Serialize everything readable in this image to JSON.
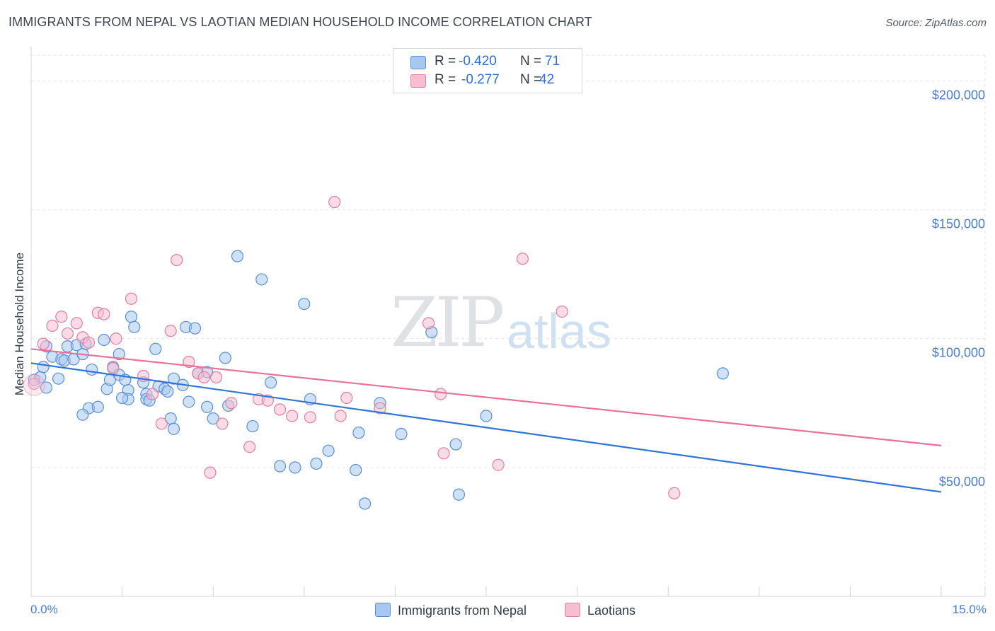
{
  "title": "IMMIGRANTS FROM NEPAL VS LAOTIAN MEDIAN HOUSEHOLD INCOME CORRELATION CHART",
  "source": "Source: ZipAtlas.com",
  "watermark": {
    "zip": "ZIP",
    "atlas": "atlas"
  },
  "stats": {
    "r_label": "R =",
    "n_label": "N =",
    "nepal": {
      "r": "-0.420",
      "n": "71"
    },
    "laotians": {
      "r": "-0.277",
      "n": "42"
    }
  },
  "legend": {
    "nepal": "Immigrants from Nepal",
    "laotians": "Laotians"
  },
  "colors": {
    "nepal_fill": "#a8c8f0",
    "nepal_stroke": "#5a8fd6",
    "nepal_line": "#2f74d6",
    "laotians_fill": "#f7bdd0",
    "laotians_stroke": "#e07fa0",
    "laotians_line": "#e8709a",
    "tick_text": "#4a7cc9",
    "grid": "#e2e5ea"
  },
  "chart_data": {
    "type": "scatter",
    "title": "IMMIGRANTS FROM NEPAL VS LAOTIAN MEDIAN HOUSEHOLD INCOME CORRELATION CHART",
    "xlabel": "",
    "ylabel": "Median Household Income",
    "xlim": [
      0,
      15
    ],
    "ylim": [
      0,
      210000
    ],
    "x_tick_labels": [
      "0.0%",
      "15.0%"
    ],
    "y_ticks": [
      {
        "value": 50000,
        "label": "$50,000"
      },
      {
        "value": 100000,
        "label": "$100,000"
      },
      {
        "value": 150000,
        "label": "$150,000"
      },
      {
        "value": 200000,
        "label": "$200,000"
      }
    ],
    "grid": true,
    "series": [
      {
        "name": "Immigrants from Nepal",
        "key": "nepal",
        "trend": {
          "x0": 0,
          "y0": 90500,
          "x1": 15,
          "y1": 40500
        },
        "points": [
          [
            0.05,
            84000
          ],
          [
            0.15,
            85000
          ],
          [
            0.2,
            89000
          ],
          [
            0.25,
            97000
          ],
          [
            0.35,
            93000
          ],
          [
            0.45,
            84500
          ],
          [
            0.5,
            92000
          ],
          [
            0.55,
            91500
          ],
          [
            0.6,
            97000
          ],
          [
            0.7,
            92000
          ],
          [
            0.75,
            97500
          ],
          [
            0.85,
            94000
          ],
          [
            0.9,
            98000
          ],
          [
            1.0,
            88000
          ],
          [
            0.95,
            73000
          ],
          [
            1.1,
            73500
          ],
          [
            0.85,
            70500
          ],
          [
            1.2,
            99500
          ],
          [
            1.25,
            80500
          ],
          [
            1.3,
            84000
          ],
          [
            1.35,
            89000
          ],
          [
            1.45,
            86000
          ],
          [
            1.45,
            94000
          ],
          [
            1.55,
            84000
          ],
          [
            1.6,
            80000
          ],
          [
            1.6,
            76500
          ],
          [
            1.65,
            108500
          ],
          [
            1.7,
            104500
          ],
          [
            1.85,
            83000
          ],
          [
            1.9,
            78500
          ],
          [
            1.9,
            76500
          ],
          [
            1.95,
            76000
          ],
          [
            2.05,
            96000
          ],
          [
            2.1,
            81500
          ],
          [
            2.2,
            80500
          ],
          [
            2.25,
            79500
          ],
          [
            2.3,
            69000
          ],
          [
            2.35,
            84500
          ],
          [
            2.35,
            65000
          ],
          [
            2.5,
            82000
          ],
          [
            2.55,
            104500
          ],
          [
            2.6,
            75500
          ],
          [
            2.7,
            104000
          ],
          [
            2.75,
            86500
          ],
          [
            2.9,
            73500
          ],
          [
            3.0,
            69000
          ],
          [
            3.2,
            92500
          ],
          [
            3.25,
            74000
          ],
          [
            3.4,
            132000
          ],
          [
            3.65,
            66000
          ],
          [
            3.8,
            123000
          ],
          [
            3.95,
            83000
          ],
          [
            4.1,
            50500
          ],
          [
            4.35,
            50000
          ],
          [
            4.6,
            76500
          ],
          [
            4.7,
            51500
          ],
          [
            4.5,
            113500
          ],
          [
            4.9,
            56500
          ],
          [
            5.35,
            49000
          ],
          [
            5.4,
            63500
          ],
          [
            5.5,
            36000
          ],
          [
            5.75,
            75000
          ],
          [
            6.1,
            63000
          ],
          [
            6.6,
            102500
          ],
          [
            7.0,
            59000
          ],
          [
            7.05,
            39500
          ],
          [
            7.5,
            70000
          ],
          [
            11.4,
            86500
          ],
          [
            0.25,
            81000
          ],
          [
            1.5,
            77000
          ],
          [
            2.9,
            87000
          ]
        ]
      },
      {
        "name": "Laotians",
        "key": "laotians",
        "trend": {
          "x0": 0,
          "y0": 96000,
          "x1": 15,
          "y1": 58500
        },
        "points": [
          [
            0.05,
            82500
          ],
          [
            0.2,
            98000
          ],
          [
            0.35,
            105000
          ],
          [
            0.5,
            108500
          ],
          [
            0.6,
            102000
          ],
          [
            0.75,
            106000
          ],
          [
            0.85,
            100500
          ],
          [
            0.95,
            98500
          ],
          [
            1.1,
            110000
          ],
          [
            1.2,
            109500
          ],
          [
            1.35,
            88500
          ],
          [
            1.4,
            100000
          ],
          [
            1.65,
            115500
          ],
          [
            1.85,
            85500
          ],
          [
            2.0,
            78500
          ],
          [
            2.15,
            67000
          ],
          [
            2.3,
            103000
          ],
          [
            2.4,
            130500
          ],
          [
            2.6,
            91000
          ],
          [
            2.75,
            86500
          ],
          [
            2.85,
            85000
          ],
          [
            2.95,
            48000
          ],
          [
            3.15,
            67000
          ],
          [
            3.3,
            75000
          ],
          [
            3.6,
            58000
          ],
          [
            3.75,
            76500
          ],
          [
            3.9,
            76000
          ],
          [
            4.1,
            72500
          ],
          [
            4.3,
            70000
          ],
          [
            4.6,
            69500
          ],
          [
            5.0,
            153000
          ],
          [
            5.1,
            70000
          ],
          [
            5.2,
            77000
          ],
          [
            5.75,
            73000
          ],
          [
            6.55,
            106000
          ],
          [
            6.75,
            78500
          ],
          [
            6.8,
            55500
          ],
          [
            7.7,
            51000
          ],
          [
            8.1,
            131000
          ],
          [
            8.75,
            110500
          ],
          [
            10.6,
            40000
          ],
          [
            3.05,
            85000
          ]
        ]
      }
    ]
  }
}
